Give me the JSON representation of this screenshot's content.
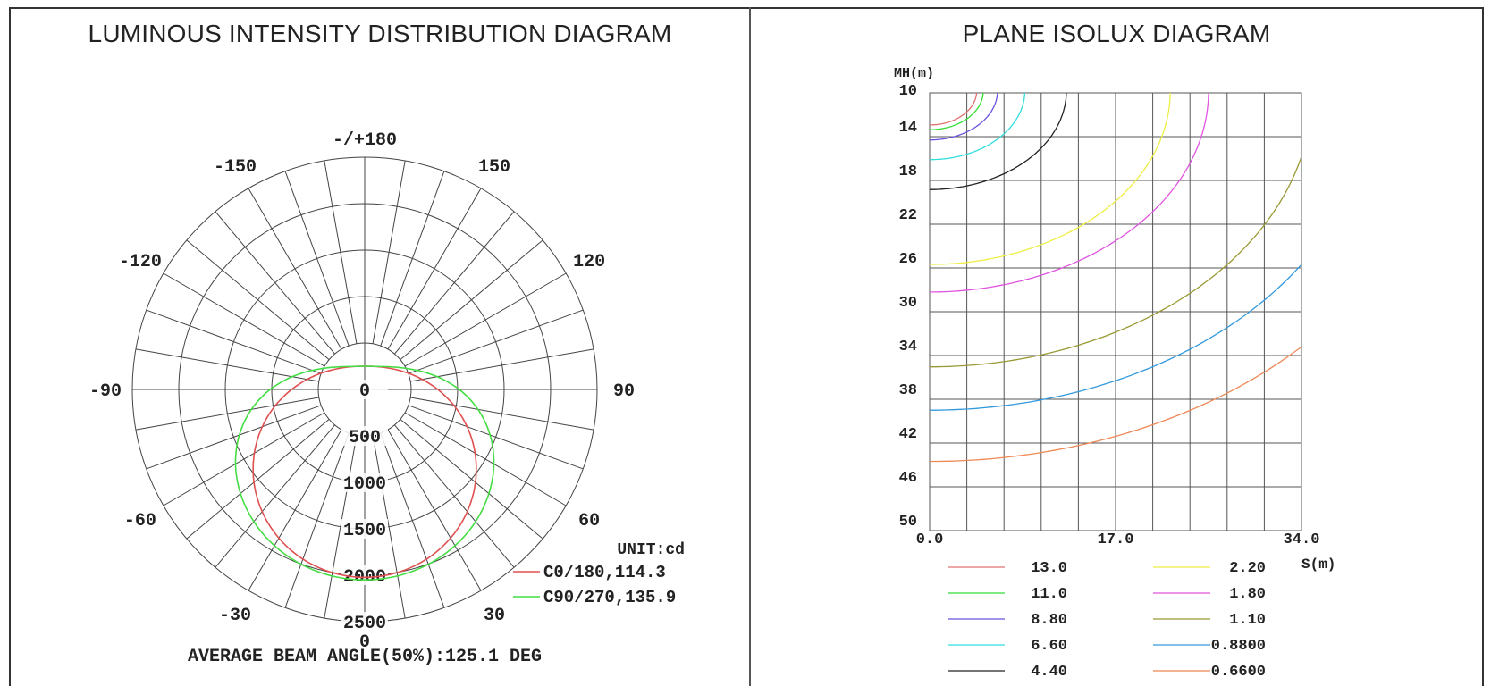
{
  "headers": {
    "left": "LUMINOUS INTENSITY DISTRIBUTION DIAGRAM",
    "right": "PLANE ISOLUX DIAGRAM"
  },
  "chart_data": [
    {
      "type": "polar",
      "title": "LUMINOUS INTENSITY DISTRIBUTION DIAGRAM",
      "angle_labels": [
        {
          "label": "-/+180",
          "angle": 180
        },
        {
          "label": "150",
          "angle": 150
        },
        {
          "label": "-150",
          "angle": -150
        },
        {
          "label": "120",
          "angle": 120
        },
        {
          "label": "-120",
          "angle": -120
        },
        {
          "label": "90",
          "angle": 90
        },
        {
          "label": "-90",
          "angle": -90
        },
        {
          "label": "60",
          "angle": 60
        },
        {
          "label": "-60",
          "angle": -60
        },
        {
          "label": "30",
          "angle": 30
        },
        {
          "label": "-30",
          "angle": -30
        },
        {
          "label": "0",
          "angle": 0
        }
      ],
      "radial_ticks": [
        "0",
        "500",
        "1000",
        "1500",
        "2000",
        "2500"
      ],
      "rmax": 2500,
      "unit": "UNIT:cd",
      "series": [
        {
          "name": "C0/180,114.3",
          "color": "#e05050",
          "fwhm": 114.3,
          "peak": 2470
        },
        {
          "name": "C90/270,135.9",
          "color": "#44dd44",
          "fwhm": 135.9,
          "peak": 2500
        }
      ],
      "footer": "AVERAGE BEAM ANGLE(50%):125.1 DEG"
    },
    {
      "type": "line",
      "title": "PLANE ISOLUX DIAGRAM",
      "ylabel": "MH(m)",
      "xlabel": "S(m)",
      "x_ticks": [
        "0.0",
        "17.0",
        "34.0"
      ],
      "xlim": [
        0,
        34
      ],
      "y_ticks": [
        "10",
        "14",
        "18",
        "22",
        "26",
        "30",
        "34",
        "38",
        "42",
        "46",
        "50"
      ],
      "ylim": [
        10,
        50
      ],
      "isolines": [
        {
          "label": "13.0",
          "color": "#e07070",
          "radius": 4.3
        },
        {
          "label": "11.0",
          "color": "#33dd33",
          "radius": 4.9
        },
        {
          "label": "8.80",
          "color": "#6655dd",
          "radius": 6.2
        },
        {
          "label": "6.60",
          "color": "#33dddd",
          "radius": 8.7
        },
        {
          "label": "4.40",
          "color": "#222222",
          "radius": 12.5
        },
        {
          "label": "2.20",
          "color": "#eeee44",
          "radius": 22.0
        },
        {
          "label": "1.80",
          "color": "#e055e0",
          "radius": 25.5
        },
        {
          "label": "1.10",
          "color": "#999933",
          "radius": 35.0
        },
        {
          "label": "0.8800",
          "color": "#3399dd",
          "radius": 40.5
        },
        {
          "label": "0.6600",
          "color": "#ee8855",
          "radius": 47.0
        }
      ]
    }
  ]
}
